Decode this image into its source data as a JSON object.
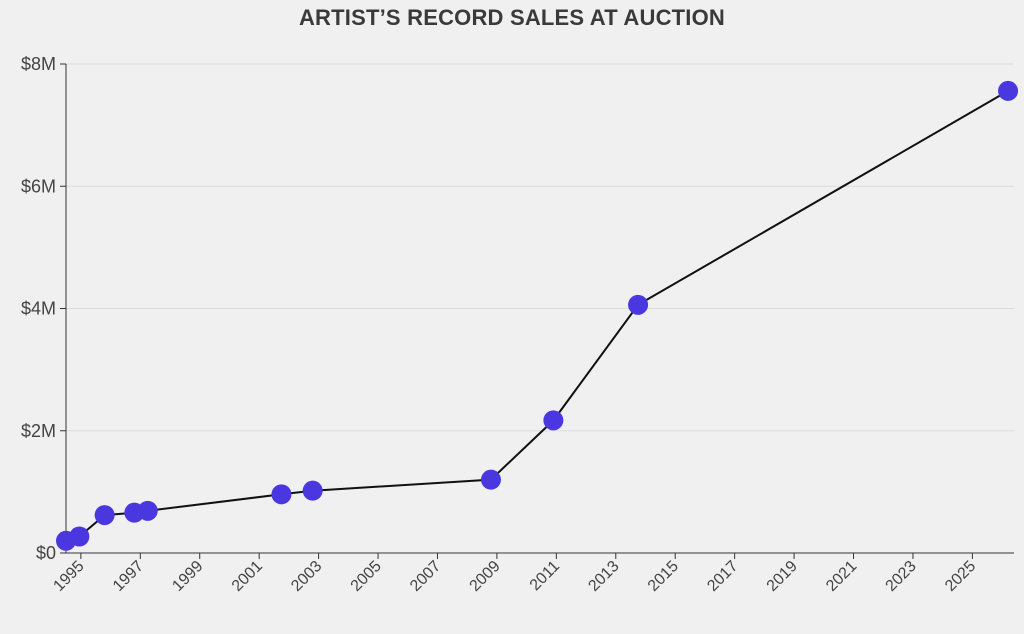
{
  "chart_data": {
    "type": "line",
    "title": "ARTIST’S RECORD SALES AT AUCTION",
    "xlabel": "",
    "ylabel": "",
    "y_tick_labels": [
      "$0",
      "$2M",
      "$4M",
      "$6M",
      "$8M"
    ],
    "y_ticks": [
      0,
      2000000,
      4000000,
      6000000,
      8000000
    ],
    "x_tick_labels": [
      "1995",
      "1997",
      "1999",
      "2001",
      "2003",
      "2005",
      "2007",
      "2009",
      "2011",
      "2013",
      "2015",
      "2017",
      "2019",
      "2021",
      "2023",
      "2025"
    ],
    "x_ticks": [
      1995,
      1997,
      1999,
      2001,
      2003,
      2005,
      2007,
      2009,
      2011,
      2013,
      2015,
      2017,
      2019,
      2021,
      2023,
      2025
    ],
    "xlim": [
      1994.5,
      2026.4
    ],
    "ylim": [
      0,
      8000000
    ],
    "grid": "horizontal",
    "series": [
      {
        "points": [
          {
            "x": 1994.5,
            "y": 200000
          },
          {
            "x": 1994.95,
            "y": 270000
          },
          {
            "x": 1995.8,
            "y": 620000
          },
          {
            "x": 1996.8,
            "y": 660000
          },
          {
            "x": 1997.25,
            "y": 690000
          },
          {
            "x": 2001.75,
            "y": 960000
          },
          {
            "x": 2002.8,
            "y": 1020000
          },
          {
            "x": 2008.8,
            "y": 1200000
          },
          {
            "x": 2010.9,
            "y": 2170000
          },
          {
            "x": 2013.75,
            "y": 4060000
          },
          {
            "x": 2026.2,
            "y": 7560000
          }
        ]
      }
    ],
    "colors": {
      "point": "#4b37e0",
      "line": "#111111",
      "grid": "#dcdcdc",
      "axis": "#333333"
    }
  }
}
